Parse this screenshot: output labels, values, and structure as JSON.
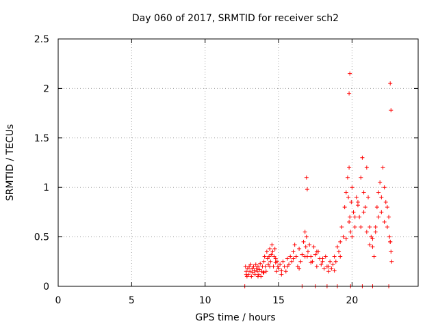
{
  "chart_data": {
    "type": "scatter",
    "title": "Day 060 of 2017, SRMTID for receiver sch2",
    "xlabel": "GPS time / hours",
    "ylabel": "SRMTID / TECUs",
    "xlim": [
      0,
      24.5
    ],
    "ylim": [
      0,
      2.5
    ],
    "x_ticks": [
      0,
      5,
      10,
      15,
      20
    ],
    "x_tick_labels": [
      "0",
      "5",
      "10",
      "15",
      "20"
    ],
    "y_ticks": [
      0,
      0.5,
      1,
      1.5,
      2,
      2.5
    ],
    "y_tick_labels": [
      "0",
      "0.5",
      "1",
      "1.5",
      "2",
      "2.5"
    ],
    "grid": true,
    "marker": "+",
    "color": "#ff0000",
    "series": [
      {
        "name": "sch2",
        "x": [
          12.75,
          12.8,
          12.85,
          12.9,
          12.95,
          13.0,
          13.05,
          13.1,
          13.15,
          13.2,
          13.25,
          13.3,
          13.35,
          13.4,
          13.45,
          13.5,
          13.55,
          13.6,
          13.65,
          13.7,
          13.75,
          13.8,
          13.85,
          13.9,
          13.95,
          14.0,
          14.05,
          14.1,
          14.15,
          14.2,
          14.25,
          14.3,
          14.35,
          14.4,
          14.45,
          14.5,
          14.55,
          14.6,
          14.65,
          14.7,
          14.75,
          14.8,
          14.85,
          14.9,
          14.95,
          15.0,
          15.1,
          15.2,
          15.3,
          15.4,
          15.5,
          15.6,
          15.7,
          15.8,
          15.9,
          16.0,
          16.1,
          16.2,
          16.3,
          16.4,
          16.5,
          16.6,
          16.7,
          16.8,
          16.85,
          16.9,
          16.95,
          17.0,
          17.1,
          17.2,
          17.3,
          17.4,
          17.5,
          17.6,
          17.7,
          17.8,
          17.9,
          18.0,
          18.1,
          18.2,
          18.3,
          18.4,
          18.5,
          18.6,
          18.7,
          18.8,
          18.9,
          19.0,
          19.1,
          19.2,
          19.3,
          19.4,
          19.5,
          19.6,
          19.7,
          19.75,
          19.8,
          19.85,
          19.9,
          19.95,
          20.0,
          20.1,
          20.2,
          20.3,
          20.4,
          20.5,
          20.6,
          20.7,
          20.8,
          20.9,
          21.0,
          21.1,
          21.2,
          21.3,
          21.4,
          21.5,
          21.6,
          21.7,
          21.8,
          21.9,
          22.0,
          22.1,
          22.2,
          22.3,
          22.4,
          22.5,
          22.55,
          22.6,
          22.65,
          22.7,
          12.8,
          13.2,
          13.6,
          14.0,
          14.4,
          14.8,
          15.2,
          15.6,
          16.0,
          16.4,
          16.8,
          17.2,
          17.6,
          18.0,
          18.4,
          18.8,
          19.2,
          19.6,
          19.8,
          20.0,
          20.2,
          20.4,
          20.6,
          20.8,
          21.0,
          21.2,
          21.4,
          21.6,
          21.8,
          22.0,
          22.2,
          22.4,
          22.6,
          12.7,
          16.6,
          17.5,
          18.3,
          19.0,
          19.9,
          20.7,
          21.4,
          22.5,
          16.9,
          16.95,
          19.8,
          19.85,
          22.6,
          22.65
        ],
        "y": [
          0.2,
          0.15,
          0.1,
          0.18,
          0.12,
          0.2,
          0.15,
          0.22,
          0.1,
          0.18,
          0.14,
          0.2,
          0.16,
          0.12,
          0.22,
          0.18,
          0.15,
          0.2,
          0.12,
          0.17,
          0.23,
          0.1,
          0.15,
          0.2,
          0.14,
          0.25,
          0.3,
          0.2,
          0.15,
          0.35,
          0.28,
          0.22,
          0.3,
          0.38,
          0.25,
          0.32,
          0.42,
          0.35,
          0.2,
          0.3,
          0.38,
          0.28,
          0.15,
          0.25,
          0.2,
          0.18,
          0.22,
          0.12,
          0.25,
          0.2,
          0.15,
          0.28,
          0.22,
          0.3,
          0.25,
          0.35,
          0.42,
          0.3,
          0.2,
          0.38,
          0.25,
          0.32,
          0.45,
          0.55,
          0.4,
          0.5,
          0.3,
          0.35,
          0.42,
          0.3,
          0.25,
          0.4,
          0.32,
          0.2,
          0.35,
          0.28,
          0.22,
          0.25,
          0.18,
          0.3,
          0.2,
          0.15,
          0.25,
          0.18,
          0.22,
          0.3,
          0.25,
          0.4,
          0.35,
          0.45,
          0.6,
          0.5,
          0.8,
          0.95,
          1.1,
          0.9,
          1.2,
          0.7,
          0.55,
          0.85,
          1.0,
          0.75,
          0.6,
          0.9,
          0.85,
          0.7,
          1.1,
          1.3,
          0.95,
          0.8,
          1.2,
          0.9,
          0.6,
          0.5,
          0.4,
          0.3,
          0.55,
          0.8,
          0.95,
          1.05,
          0.75,
          1.2,
          1.0,
          0.85,
          0.6,
          0.7,
          0.5,
          0.45,
          0.35,
          0.25,
          0.12,
          0.18,
          0.1,
          0.14,
          0.2,
          0.24,
          0.16,
          0.2,
          0.28,
          0.18,
          0.3,
          0.24,
          0.35,
          0.28,
          0.2,
          0.16,
          0.3,
          0.48,
          0.65,
          0.5,
          0.7,
          0.82,
          0.6,
          0.75,
          0.55,
          0.42,
          0.48,
          0.6,
          0.7,
          0.9,
          0.65,
          0.8,
          0.45,
          0.0,
          0.0,
          0.0,
          0.0,
          0.0,
          0.0,
          0.0,
          0.0,
          0.0,
          1.1,
          0.98,
          1.95,
          2.15,
          2.05,
          1.78
        ]
      }
    ]
  }
}
